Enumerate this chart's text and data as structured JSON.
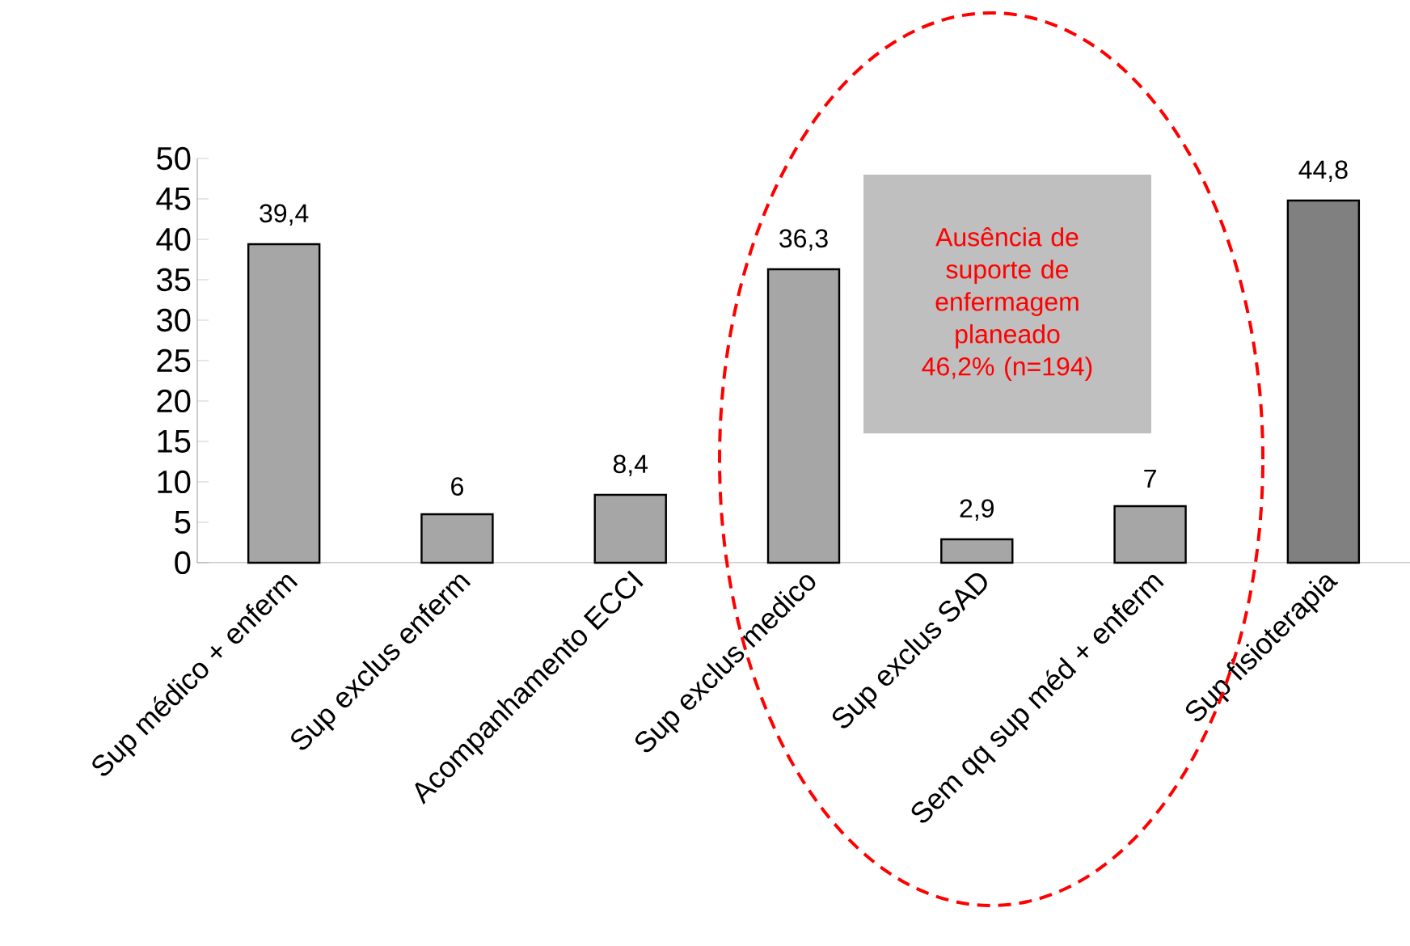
{
  "chart_data": {
    "type": "bar",
    "categories": [
      "Sup médico + enferm",
      "Sup exclus enferm",
      "Acompanhamento ECCI",
      "Sup exclus medico",
      "Sup exclus SAD",
      "Sem qq sup méd + enferm",
      "Sup fisioterapia"
    ],
    "values": [
      39.4,
      6,
      8.4,
      36.3,
      2.9,
      7,
      44.8
    ],
    "value_labels": [
      "39,4",
      "6",
      "8,4",
      "36,3",
      "2,9",
      "7",
      "44,8"
    ],
    "colors": [
      "#a6a6a6",
      "#a6a6a6",
      "#a6a6a6",
      "#a6a6a6",
      "#a6a6a6",
      "#a6a6a6",
      "#808080"
    ],
    "ylim": [
      0,
      50
    ],
    "yticks": [
      0,
      5,
      10,
      15,
      20,
      25,
      30,
      35,
      40,
      45,
      50
    ],
    "grid": false,
    "annotations": [
      "Ausência de suporte de enfermagem planeado 46,2% (n=194)"
    ]
  }
}
